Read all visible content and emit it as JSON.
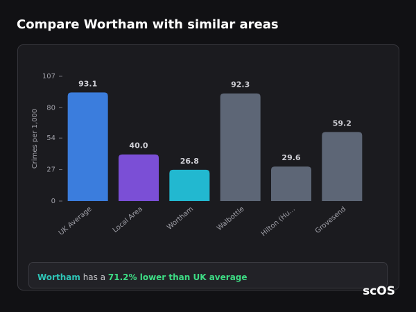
{
  "header": {
    "title": "Compare Wortham with similar areas"
  },
  "chart_data": {
    "type": "bar",
    "y_label": "Crimes per 1,000",
    "categories": [
      "UK Average",
      "Local Area",
      "Wortham",
      "Walbottle",
      "Hilton (Hu...",
      "Grovesend"
    ],
    "values": [
      93.1,
      40.0,
      26.8,
      92.3,
      29.6,
      59.2
    ],
    "value_labels": [
      "93.1",
      "40.0",
      "26.8",
      "92.3",
      "29.6",
      "59.2"
    ],
    "colors": [
      "#3b7ddd",
      "#7b4fd6",
      "#22b8d0",
      "#5d6676",
      "#5d6676",
      "#5d6676"
    ],
    "ylim": [
      0,
      107
    ],
    "yticks": [
      0,
      27,
      54,
      80,
      107
    ]
  },
  "summary": {
    "area": "Wortham",
    "text": "has a",
    "highlight": "71.2% lower than UK average"
  },
  "logo": "scOS"
}
